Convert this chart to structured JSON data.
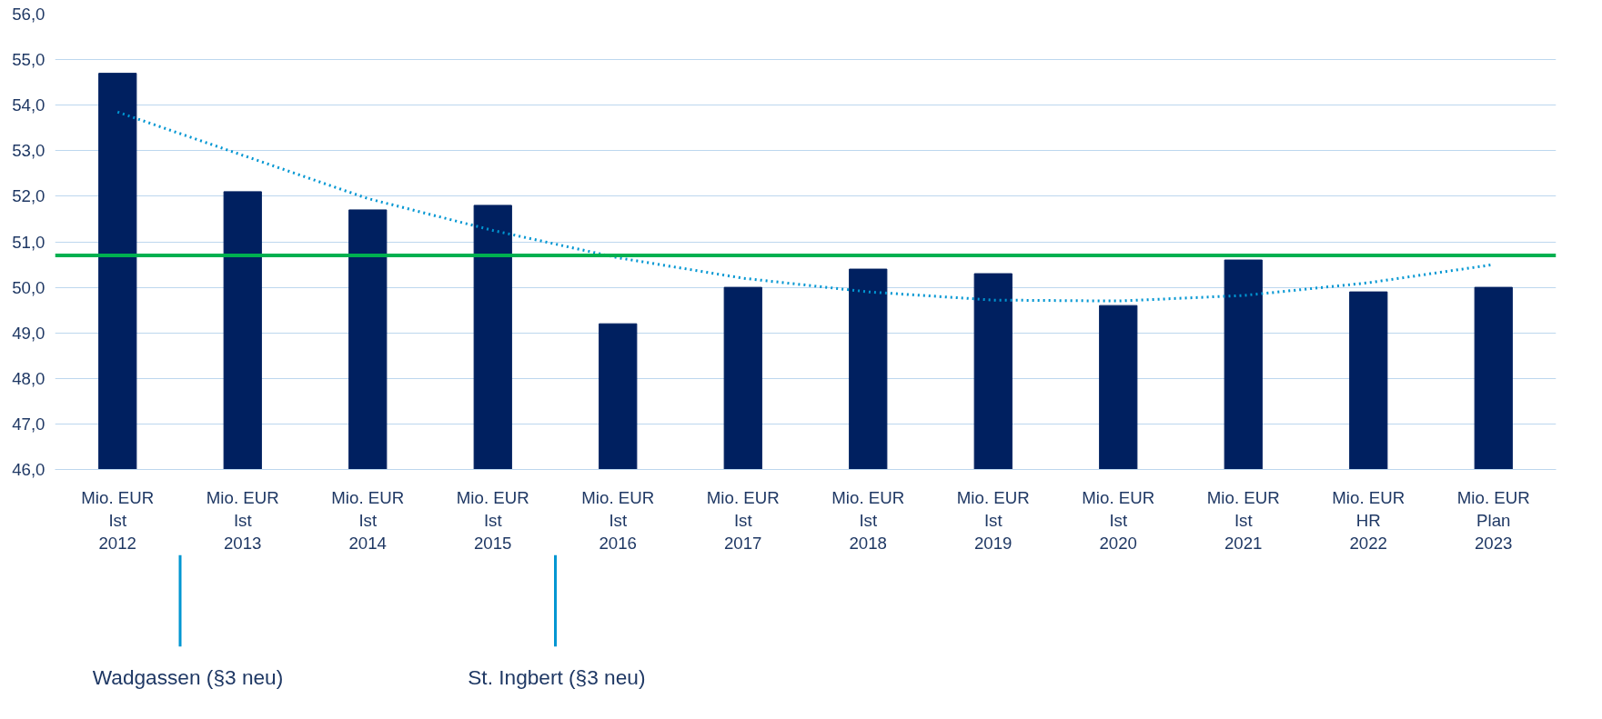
{
  "chart_data": {
    "type": "bar",
    "categories": [
      "Mio. EUR\nIst\n2012",
      "Mio. EUR\nIst\n2013",
      "Mio. EUR\nIst\n2014",
      "Mio. EUR\nIst\n2015",
      "Mio. EUR\nIst\n2016",
      "Mio. EUR\nIst\n2017",
      "Mio. EUR\nIst\n2018",
      "Mio. EUR\nIst\n2019",
      "Mio. EUR\nIst\n2020",
      "Mio. EUR\nIst\n2021",
      "Mio. EUR\nHR\n2022",
      "Mio. EUR\nPlan\n2023"
    ],
    "series": [
      {
        "color": "#002060",
        "values": [
          54.7,
          52.1,
          51.7,
          51.8,
          49.2,
          50.0,
          50.4,
          50.3,
          49.6,
          50.6,
          49.9,
          50.0
        ]
      },
      {
        "type": "line",
        "color": "#0096d2",
        "line_style": "dotted",
        "values": [
          53.85,
          52.9,
          51.95,
          51.25,
          50.65,
          50.2,
          49.9,
          49.72,
          49.7,
          49.82,
          50.1,
          50.5
        ]
      }
    ],
    "ylim": [
      46,
      56
    ],
    "yticks": [
      {
        "value": 46,
        "label": "46,0"
      },
      {
        "value": 47,
        "label": "47,0"
      },
      {
        "value": 48,
        "label": "48,0"
      },
      {
        "value": 49,
        "label": "49,0"
      },
      {
        "value": 50,
        "label": "50,0"
      },
      {
        "value": 51,
        "label": "51,0"
      },
      {
        "value": 52,
        "label": "52,0"
      },
      {
        "value": 53,
        "label": "53,0"
      },
      {
        "value": 54,
        "label": "54,0"
      },
      {
        "value": 55,
        "label": "55,0"
      },
      {
        "value": 56,
        "label": "56,0"
      }
    ],
    "grid": "y",
    "ref_lines": [
      {
        "axis": "y",
        "value": 50.7,
        "color": "#00b050"
      }
    ],
    "annotations": [
      "Wadgassen (§3 neu)",
      "St. Ingbert (§3 neu)"
    ]
  }
}
